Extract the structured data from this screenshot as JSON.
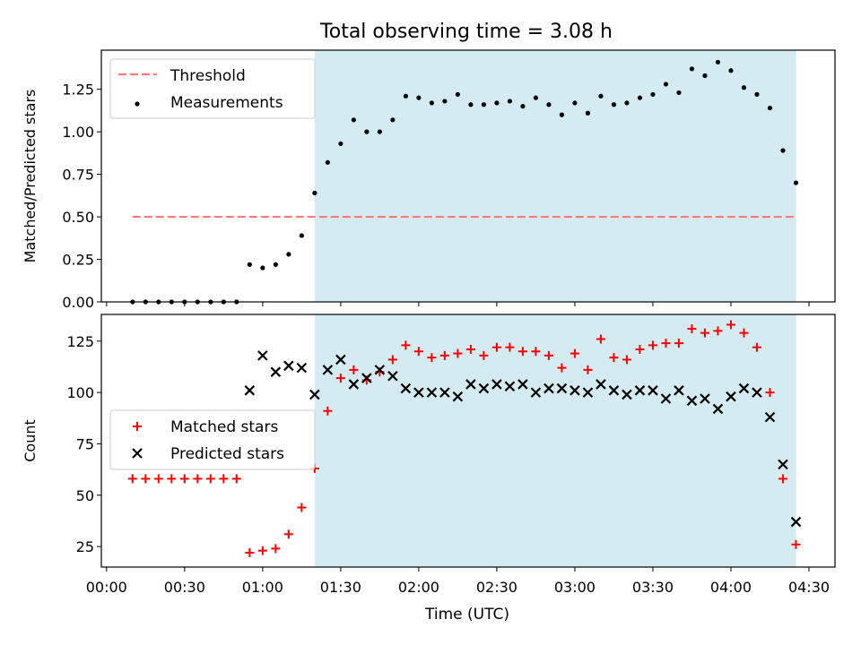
{
  "figure": {
    "title": "Total observing time = 3.08 h",
    "xlabel": "Time (UTC)",
    "xticks": [
      "00:00",
      "00:30",
      "01:00",
      "01:30",
      "02:00",
      "02:30",
      "03:00",
      "03:30",
      "04:00",
      "04:30"
    ]
  },
  "chart_data": [
    {
      "type": "scatter",
      "title": "Total observing time = 3.08 h",
      "xlabel": "Time (UTC)",
      "ylabel": "Matched/Predicted stars",
      "xlim": [
        "23:58",
        "04:40"
      ],
      "ylim": [
        0,
        1.48
      ],
      "yticks": [
        "0.00",
        "0.25",
        "0.50",
        "0.75",
        "1.00",
        "1.25"
      ],
      "legend": "top-left",
      "shaded_region": {
        "start": "01:20",
        "end": "04:25",
        "color": "#d4ebf1"
      },
      "threshold": {
        "name": "Threshold",
        "value": 0.5,
        "start": "00:10",
        "end": "04:25",
        "color": "#ff7b7b"
      },
      "series": [
        {
          "name": "Measurements",
          "color": "#000000",
          "points": [
            [
              "00:10",
              0.0
            ],
            [
              "00:15",
              0.0
            ],
            [
              "00:20",
              0.0
            ],
            [
              "00:25",
              0.0
            ],
            [
              "00:30",
              0.0
            ],
            [
              "00:35",
              0.0
            ],
            [
              "00:40",
              0.0
            ],
            [
              "00:45",
              0.0
            ],
            [
              "00:50",
              0.0
            ],
            [
              "00:55",
              0.22
            ],
            [
              "01:00",
              0.2
            ],
            [
              "01:05",
              0.22
            ],
            [
              "01:10",
              0.28
            ],
            [
              "01:15",
              0.39
            ],
            [
              "01:20",
              0.64
            ],
            [
              "01:25",
              0.82
            ],
            [
              "01:30",
              0.93
            ],
            [
              "01:35",
              1.07
            ],
            [
              "01:40",
              1.0
            ],
            [
              "01:45",
              1.0
            ],
            [
              "01:50",
              1.07
            ],
            [
              "01:55",
              1.21
            ],
            [
              "02:00",
              1.2
            ],
            [
              "02:05",
              1.17
            ],
            [
              "02:10",
              1.18
            ],
            [
              "02:15",
              1.22
            ],
            [
              "02:20",
              1.16
            ],
            [
              "02:25",
              1.16
            ],
            [
              "02:30",
              1.17
            ],
            [
              "02:35",
              1.18
            ],
            [
              "02:40",
              1.15
            ],
            [
              "02:45",
              1.2
            ],
            [
              "02:50",
              1.16
            ],
            [
              "02:55",
              1.1
            ],
            [
              "03:00",
              1.17
            ],
            [
              "03:05",
              1.11
            ],
            [
              "03:10",
              1.21
            ],
            [
              "03:15",
              1.16
            ],
            [
              "03:20",
              1.17
            ],
            [
              "03:25",
              1.2
            ],
            [
              "03:30",
              1.22
            ],
            [
              "03:35",
              1.28
            ],
            [
              "03:40",
              1.23
            ],
            [
              "03:45",
              1.37
            ],
            [
              "03:50",
              1.33
            ],
            [
              "03:55",
              1.41
            ],
            [
              "04:00",
              1.36
            ],
            [
              "04:05",
              1.26
            ],
            [
              "04:10",
              1.22
            ],
            [
              "04:15",
              1.14
            ],
            [
              "04:20",
              0.89
            ],
            [
              "04:25",
              0.7
            ]
          ]
        }
      ]
    },
    {
      "type": "scatter",
      "xlabel": "Time (UTC)",
      "ylabel": "Count",
      "xlim": [
        "23:58",
        "04:40"
      ],
      "ylim": [
        15,
        138
      ],
      "yticks": [
        "25",
        "50",
        "75",
        "100",
        "125"
      ],
      "legend": "center-left",
      "shaded_region": {
        "start": "01:20",
        "end": "04:25",
        "color": "#d4ebf1"
      },
      "series": [
        {
          "name": "Matched stars",
          "marker": "+",
          "color": "#ff0000",
          "points": [
            [
              "00:10",
              58
            ],
            [
              "00:15",
              58
            ],
            [
              "00:20",
              58
            ],
            [
              "00:25",
              58
            ],
            [
              "00:30",
              58
            ],
            [
              "00:35",
              58
            ],
            [
              "00:40",
              58
            ],
            [
              "00:45",
              58
            ],
            [
              "00:50",
              58
            ],
            [
              "00:55",
              22
            ],
            [
              "01:00",
              23
            ],
            [
              "01:05",
              24
            ],
            [
              "01:10",
              31
            ],
            [
              "01:15",
              44
            ],
            [
              "01:20",
              63
            ],
            [
              "01:25",
              91
            ],
            [
              "01:30",
              107
            ],
            [
              "01:35",
              111
            ],
            [
              "01:40",
              106
            ],
            [
              "01:45",
              110
            ],
            [
              "01:50",
              116
            ],
            [
              "01:55",
              123
            ],
            [
              "02:00",
              120
            ],
            [
              "02:05",
              117
            ],
            [
              "02:10",
              118
            ],
            [
              "02:15",
              119
            ],
            [
              "02:20",
              121
            ],
            [
              "02:25",
              118
            ],
            [
              "02:30",
              122
            ],
            [
              "02:35",
              122
            ],
            [
              "02:40",
              120
            ],
            [
              "02:45",
              120
            ],
            [
              "02:50",
              118
            ],
            [
              "02:55",
              112
            ],
            [
              "03:00",
              119
            ],
            [
              "03:05",
              111
            ],
            [
              "03:10",
              126
            ],
            [
              "03:15",
              117
            ],
            [
              "03:20",
              116
            ],
            [
              "03:25",
              121
            ],
            [
              "03:30",
              123
            ],
            [
              "03:35",
              124
            ],
            [
              "03:40",
              124
            ],
            [
              "03:45",
              131
            ],
            [
              "03:50",
              129
            ],
            [
              "03:55",
              130
            ],
            [
              "04:00",
              133
            ],
            [
              "04:05",
              129
            ],
            [
              "04:10",
              122
            ],
            [
              "04:15",
              100
            ],
            [
              "04:20",
              58
            ],
            [
              "04:25",
              26
            ]
          ]
        },
        {
          "name": "Predicted stars",
          "marker": "x",
          "color": "#000000",
          "points": [
            [
              "00:55",
              101
            ],
            [
              "01:00",
              118
            ],
            [
              "01:05",
              110
            ],
            [
              "01:10",
              113
            ],
            [
              "01:15",
              112
            ],
            [
              "01:20",
              99
            ],
            [
              "01:25",
              111
            ],
            [
              "01:30",
              116
            ],
            [
              "01:35",
              104
            ],
            [
              "01:40",
              107
            ],
            [
              "01:45",
              111
            ],
            [
              "01:50",
              108
            ],
            [
              "01:55",
              102
            ],
            [
              "02:00",
              100
            ],
            [
              "02:05",
              100
            ],
            [
              "02:10",
              100
            ],
            [
              "02:15",
              98
            ],
            [
              "02:20",
              104
            ],
            [
              "02:25",
              102
            ],
            [
              "02:30",
              104
            ],
            [
              "02:35",
              103
            ],
            [
              "02:40",
              104
            ],
            [
              "02:45",
              100
            ],
            [
              "02:50",
              102
            ],
            [
              "02:55",
              102
            ],
            [
              "03:00",
              101
            ],
            [
              "03:05",
              100
            ],
            [
              "03:10",
              104
            ],
            [
              "03:15",
              101
            ],
            [
              "03:20",
              99
            ],
            [
              "03:25",
              101
            ],
            [
              "03:30",
              101
            ],
            [
              "03:35",
              97
            ],
            [
              "03:40",
              101
            ],
            [
              "03:45",
              96
            ],
            [
              "03:50",
              97
            ],
            [
              "03:55",
              92
            ],
            [
              "04:00",
              98
            ],
            [
              "04:05",
              102
            ],
            [
              "04:10",
              100
            ],
            [
              "04:15",
              88
            ],
            [
              "04:20",
              65
            ],
            [
              "04:25",
              37
            ]
          ]
        }
      ]
    }
  ]
}
